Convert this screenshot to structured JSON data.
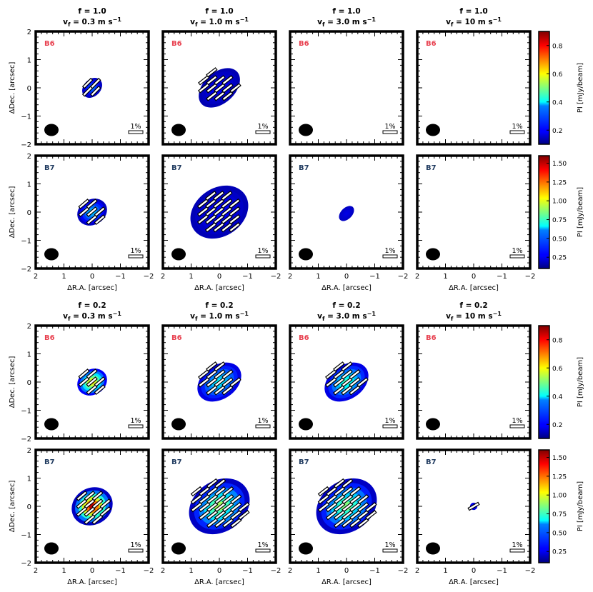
{
  "chart_data": {
    "type": "heatmap",
    "description_axes": {
      "xlabel": "ΔR.A. [arcsec]",
      "ylabel": "ΔDec. [arcsec]",
      "xlim": [
        2,
        -2
      ],
      "ylim": [
        -2,
        2
      ],
      "xticks": [
        "2",
        "1",
        "0",
        "−1",
        "−2"
      ],
      "yticks": [
        "2",
        "1",
        "0",
        "−1",
        "−2"
      ]
    },
    "groups": [
      {
        "f_label": "f = 1.0",
        "vf_labels": [
          "v_f = 0.3 m s^-1",
          "v_f = 1.0 m s^-1",
          "v_f = 3.0 m s^-1",
          "v_f = 10 m s^-1"
        ],
        "rows": [
          {
            "band": "B6",
            "colorbar": {
              "label": "PI [mJy/beam]",
              "ticks": [
                "0.2",
                "0.4",
                "0.6",
                "0.8"
              ],
              "min": 0.1,
              "max": 0.9
            },
            "panels": [
              {
                "emission": {
                  "ra": 0.0,
                  "dec": 0.0,
                  "rx": 0.4,
                  "ry": 0.3,
                  "angle": 45,
                  "peak": 0.3,
                  "edge": 0.15
                },
                "vectors": {
                  "count": 6,
                  "angle": 45
                }
              },
              {
                "emission": {
                  "ra": 0.0,
                  "dec": 0.0,
                  "rx": 0.85,
                  "ry": 0.55,
                  "angle": 42,
                  "peak": 0.2,
                  "edge": 0.14
                },
                "vectors": {
                  "count": 13,
                  "angle": 38
                }
              },
              {
                "emission": null,
                "vectors": {
                  "count": 0,
                  "angle": 0
                }
              },
              {
                "emission": null,
                "vectors": {
                  "count": 0,
                  "angle": 0
                }
              }
            ]
          },
          {
            "band": "B7",
            "colorbar": {
              "label": "PI [mJy/beam]",
              "ticks": [
                "0.25",
                "0.50",
                "0.75",
                "1.00",
                "1.25",
                "1.50"
              ],
              "min": 0.1,
              "max": 1.6
            },
            "panels": [
              {
                "emission": {
                  "ra": 0.0,
                  "dec": 0.0,
                  "rx": 0.55,
                  "ry": 0.45,
                  "angle": 30,
                  "peak": 0.6,
                  "edge": 0.2
                },
                "vectors": {
                  "count": 12,
                  "angle": 40
                }
              },
              {
                "emission": {
                  "ra": 0.0,
                  "dec": 0.0,
                  "rx": 1.1,
                  "ry": 0.85,
                  "angle": 35,
                  "peak": 0.3,
                  "edge": 0.18
                },
                "vectors": {
                  "count": 22,
                  "angle": 38
                }
              },
              {
                "emission": {
                  "ra": 0.0,
                  "dec": -0.05,
                  "rx": 0.32,
                  "ry": 0.2,
                  "angle": 45,
                  "peak": 0.25,
                  "edge": 0.2
                },
                "vectors": {
                  "count": 0,
                  "angle": 0
                }
              },
              {
                "emission": null,
                "vectors": {
                  "count": 0,
                  "angle": 0
                }
              }
            ]
          }
        ]
      },
      {
        "f_label": "f = 0.2",
        "vf_labels": [
          "v_f = 0.3 m s^-1",
          "v_f = 1.0 m s^-1",
          "v_f = 3.0 m s^-1",
          "v_f = 10 m s^-1"
        ],
        "rows": [
          {
            "band": "B6",
            "colorbar": {
              "label": "PI [mJy/beam]",
              "ticks": [
                "0.2",
                "0.4",
                "0.6",
                "0.8"
              ],
              "min": 0.1,
              "max": 0.9
            },
            "panels": [
              {
                "emission": {
                  "ra": 0.0,
                  "dec": 0.0,
                  "rx": 0.55,
                  "ry": 0.45,
                  "angle": 30,
                  "peak": 0.65,
                  "edge": 0.2
                },
                "vectors": {
                  "count": 10,
                  "angle": 40
                }
              },
              {
                "emission": {
                  "ra": 0.0,
                  "dec": 0.0,
                  "rx": 0.85,
                  "ry": 0.6,
                  "angle": 35,
                  "peak": 0.4,
                  "edge": 0.18
                },
                "vectors": {
                  "count": 14,
                  "angle": 38
                }
              },
              {
                "emission": {
                  "ra": 0.0,
                  "dec": 0.0,
                  "rx": 0.85,
                  "ry": 0.6,
                  "angle": 35,
                  "peak": 0.45,
                  "edge": 0.18
                },
                "vectors": {
                  "count": 14,
                  "angle": 38
                }
              },
              {
                "emission": null,
                "vectors": {
                  "count": 0,
                  "angle": 0
                }
              }
            ]
          },
          {
            "band": "B7",
            "colorbar": {
              "label": "PI [mJy/beam]",
              "ticks": [
                "0.25",
                "0.50",
                "0.75",
                "1.00",
                "1.25",
                "1.50"
              ],
              "min": 0.1,
              "max": 1.6
            },
            "panels": [
              {
                "emission": {
                  "ra": 0.0,
                  "dec": 0.0,
                  "rx": 0.75,
                  "ry": 0.65,
                  "angle": 30,
                  "peak": 1.5,
                  "edge": 0.2
                },
                "vectors": {
                  "count": 20,
                  "angle": 40
                }
              },
              {
                "emission": {
                  "ra": 0.0,
                  "dec": 0.0,
                  "rx": 1.15,
                  "ry": 0.9,
                  "angle": 35,
                  "peak": 0.9,
                  "edge": 0.2
                },
                "vectors": {
                  "count": 30,
                  "angle": 38
                }
              },
              {
                "emission": {
                  "ra": 0.0,
                  "dec": 0.0,
                  "rx": 1.15,
                  "ry": 0.9,
                  "angle": 35,
                  "peak": 0.85,
                  "edge": 0.2
                },
                "vectors": {
                  "count": 30,
                  "angle": 38
                }
              },
              {
                "emission": {
                  "ra": 0.0,
                  "dec": 0.0,
                  "rx": 0.13,
                  "ry": 0.13,
                  "angle": 0,
                  "peak": 0.3,
                  "edge": 0.25
                },
                "vectors": {
                  "count": 1,
                  "angle": 30
                }
              }
            ]
          }
        ]
      }
    ],
    "scale_bar_label": "1%"
  }
}
